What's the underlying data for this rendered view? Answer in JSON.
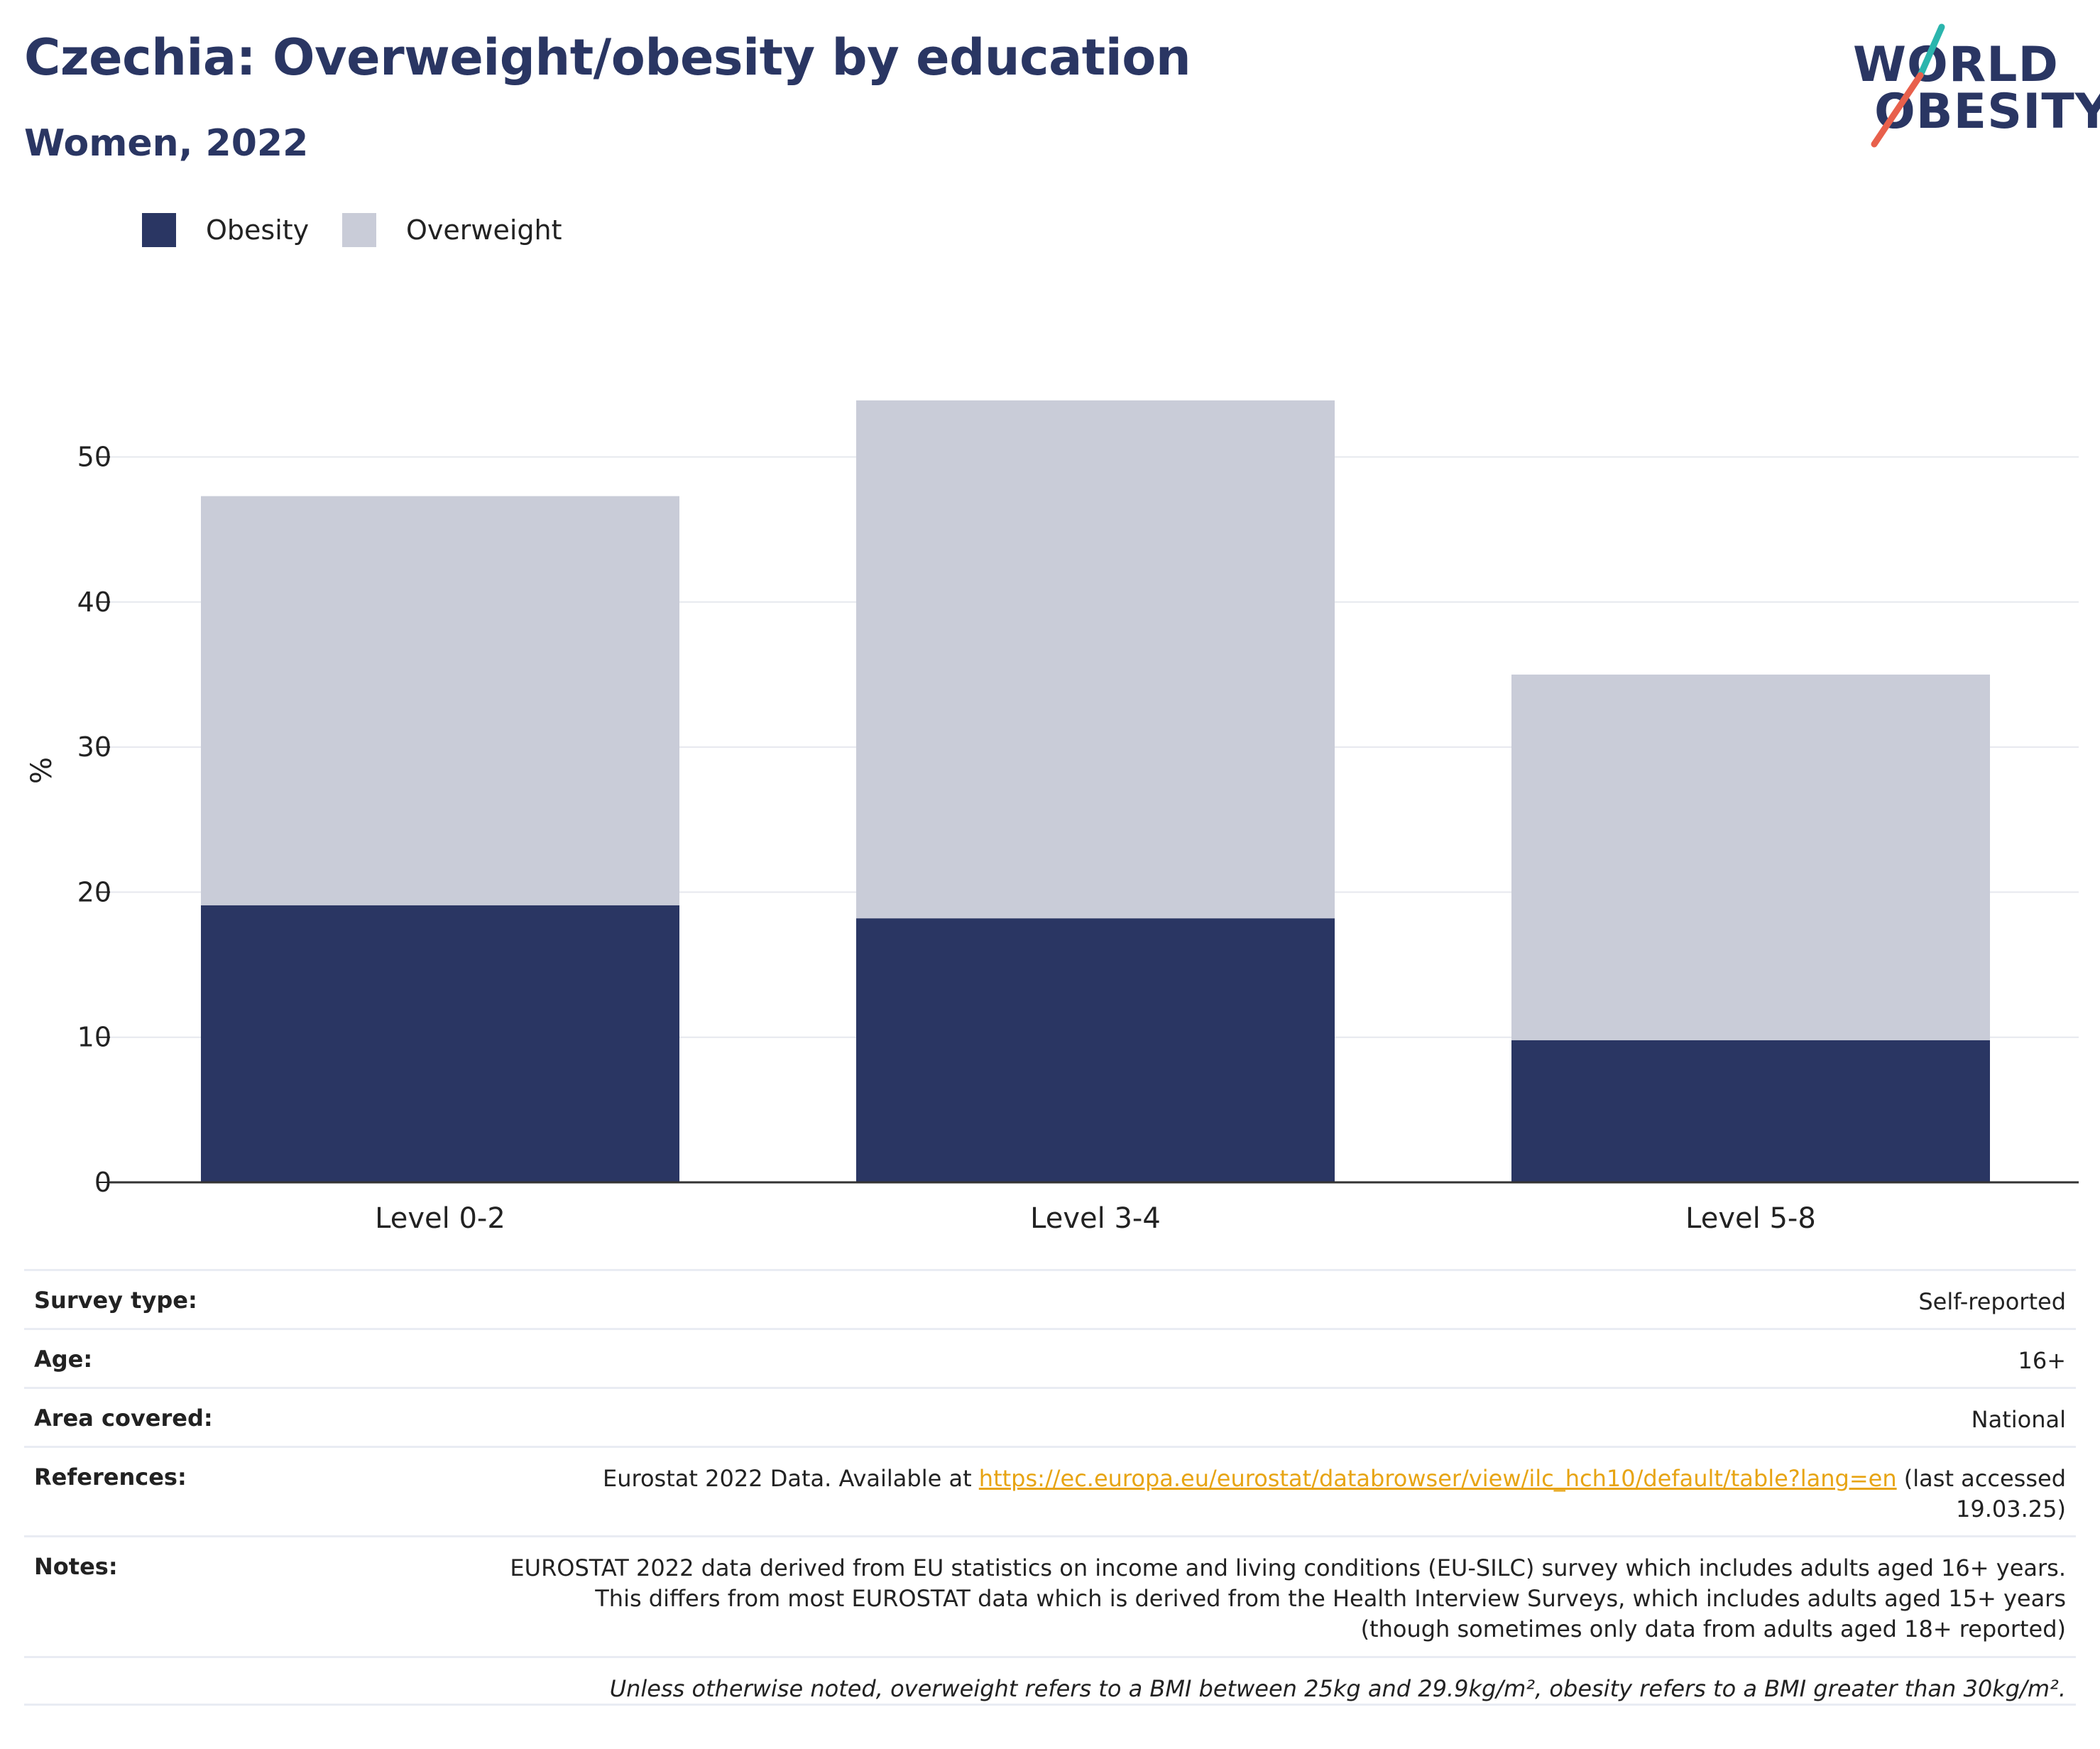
{
  "header": {
    "title": "Czechia: Overweight/obesity by education",
    "subtitle": "Women, 2022"
  },
  "logo": {
    "line1": "WORLD",
    "line2": "OBESITY"
  },
  "colors": {
    "obesity": "#2a3663",
    "overweight": "#c9ccd8",
    "brand_navy": "#2a3663",
    "logo_teal": "#2bb5ad",
    "logo_red": "#e8604c",
    "link": "#e7a413"
  },
  "legend": [
    {
      "label": "Obesity",
      "color": "#2a3663"
    },
    {
      "label": "Overweight",
      "color": "#c9ccd8"
    }
  ],
  "chart_data": {
    "type": "bar",
    "stacked": true,
    "categories": [
      "Level 0-2",
      "Level 3-4",
      "Level 5-8"
    ],
    "series": [
      {
        "name": "Obesity",
        "values": [
          19.1,
          18.2,
          9.8
        ]
      },
      {
        "name": "Overweight",
        "values": [
          28.2,
          35.7,
          25.2
        ]
      }
    ],
    "ylabel": "%",
    "ylim": [
      0,
      54
    ],
    "yticks": [
      0,
      10,
      20,
      30,
      40,
      50
    ],
    "grid": true,
    "legend_position": "top-left"
  },
  "info": {
    "survey_type": {
      "label": "Survey type:",
      "value": "Self-reported"
    },
    "age": {
      "label": "Age:",
      "value": "16+"
    },
    "area": {
      "label": "Area covered:",
      "value": "National"
    },
    "references": {
      "label": "References:",
      "prefix": "Eurostat 2022 Data. Available at",
      "link": "https://ec.europa.eu/eurostat/databrowser/view/ilc_hch10/default/table?lang=en",
      "suffix": "(last accessed 19.03.25)"
    },
    "notes": {
      "label": "Notes:",
      "value": "EUROSTAT 2022 data derived from EU statistics on income and living conditions (EU-SILC) survey which includes adults aged 16+ years. This differs from most EUROSTAT data which is derived from the Health Interview Surveys, which includes adults aged 15+ years (though sometimes only data from adults aged 18+ reported)"
    },
    "footnote": "Unless otherwise noted, overweight refers to a BMI between 25kg and 29.9kg/m², obesity refers to a BMI greater than 30kg/m²."
  }
}
